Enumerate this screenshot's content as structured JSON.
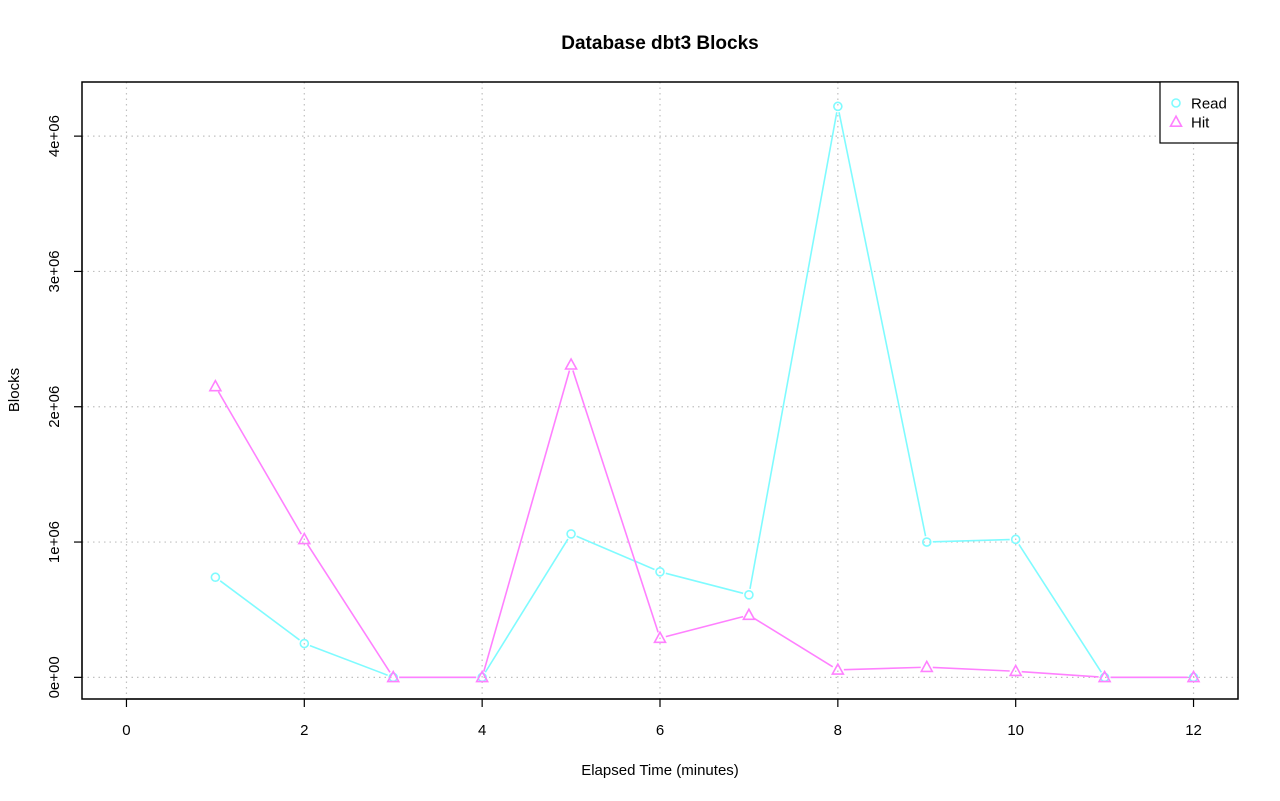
{
  "chart_data": {
    "type": "line",
    "title": "Database dbt3 Blocks",
    "xlabel": "Elapsed Time (minutes)",
    "ylabel": "Blocks",
    "xlim": [
      -0.5,
      12.5
    ],
    "ylim": [
      -160000,
      4400000
    ],
    "x_ticks": [
      0,
      2,
      4,
      6,
      8,
      10,
      12
    ],
    "x_tick_labels": [
      "0",
      "2",
      "4",
      "6",
      "8",
      "10",
      "12"
    ],
    "y_ticks": [
      0,
      1000000,
      2000000,
      3000000,
      4000000
    ],
    "y_tick_labels": [
      "0e+00",
      "1e+06",
      "2e+06",
      "3e+06",
      "4e+06"
    ],
    "grid": true,
    "legend_position": "top-right",
    "x": [
      1,
      2,
      3,
      4,
      5,
      6,
      7,
      8,
      9,
      10,
      11,
      12
    ],
    "series": [
      {
        "name": "Read",
        "color": "#7ffbff",
        "marker": "circle",
        "values": [
          740000,
          250000,
          0,
          0,
          1060000,
          780000,
          610000,
          4220000,
          1000000,
          1020000,
          0,
          0
        ]
      },
      {
        "name": "Hit",
        "color": "#ff80ff",
        "marker": "triangle",
        "values": [
          2150000,
          1020000,
          0,
          0,
          2310000,
          290000,
          460000,
          55000,
          75000,
          45000,
          0,
          0
        ]
      }
    ]
  }
}
